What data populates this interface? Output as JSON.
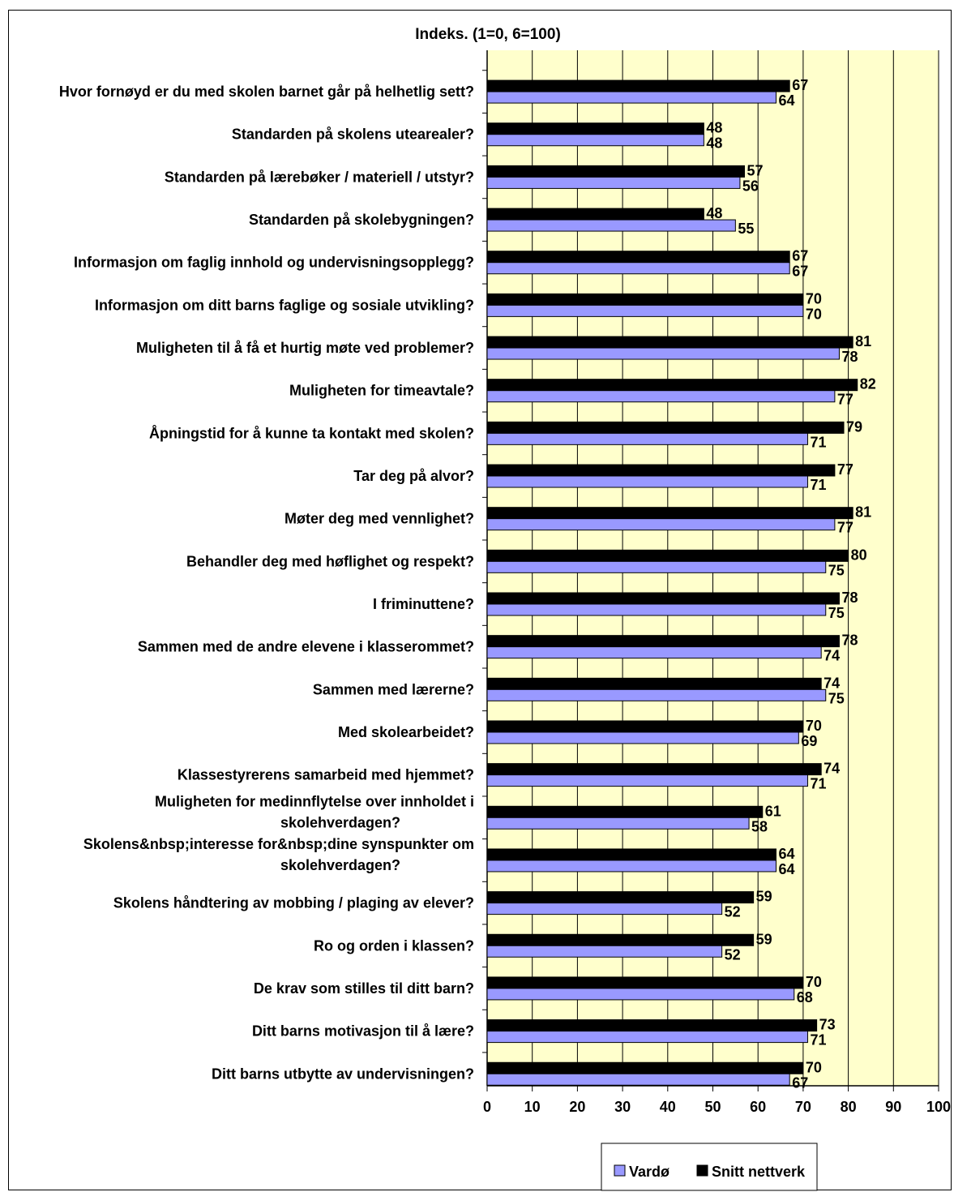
{
  "chart_data": {
    "type": "bar",
    "orientation": "horizontal",
    "title": "Indeks.  (1=0, 6=100)",
    "xlabel": "",
    "ylabel": "",
    "xlim": [
      0,
      100
    ],
    "x_ticks": [
      0,
      10,
      20,
      30,
      40,
      50,
      60,
      70,
      80,
      90,
      100
    ],
    "grid": "vertical",
    "shaded_range": [
      80,
      100
    ],
    "legend_position": "bottom-right",
    "categories": [
      "Hvor fornøyd er du med skolen barnet går på helhetlig sett?",
      "Standarden på skolens utearealer?",
      "Standarden på lærebøker / materiell / utstyr?",
      "Standarden på skolebygningen?",
      "Informasjon om faglig innhold og undervisningsopplegg?",
      "Informasjon om ditt barns faglige og sosiale utvikling?",
      "Muligheten til å få et hurtig møte ved problemer?",
      "Muligheten for timeavtale?",
      "Åpningstid for å kunne ta kontakt med skolen?",
      "Tar deg på alvor?",
      "Møter deg med vennlighet?",
      "Behandler deg med høflighet og respekt?",
      "I friminuttene?",
      "Sammen med de andre elevene i klasserommet?",
      "Sammen med lærerne?",
      "Med skolearbeidet?",
      "Klassestyrerens samarbeid med hjemmet?",
      "Muligheten for medinnflytelse over innholdet i skolehverdagen?",
      "Skolens&nbsp;interesse for&nbsp;dine synspunkter om skolehverdagen?",
      "Skolens håndtering av mobbing / plaging av elever?",
      "Ro og orden i klassen?",
      "De krav som stilles til ditt barn?",
      "Ditt barns motivasjon til å lære?",
      "Ditt barns utbytte av undervisningen?"
    ],
    "series": [
      {
        "name": "Snitt nettverk",
        "color": "#000000",
        "values": [
          67,
          48,
          57,
          48,
          67,
          70,
          81,
          82,
          79,
          77,
          81,
          80,
          78,
          78,
          74,
          70,
          74,
          61,
          64,
          59,
          59,
          70,
          73,
          70
        ]
      },
      {
        "name": "Vardø",
        "color": "#9999ff",
        "values": [
          64,
          48,
          56,
          55,
          67,
          70,
          78,
          77,
          71,
          71,
          77,
          75,
          75,
          74,
          75,
          69,
          71,
          58,
          64,
          52,
          52,
          68,
          71,
          67
        ]
      }
    ],
    "legend": [
      "Vardø",
      "Snitt nettverk"
    ],
    "colors": {
      "plot_background": "#ffffcc",
      "shaded_background": "#ffffcc",
      "vardo": "#9999ff",
      "snitt": "#000000"
    }
  }
}
